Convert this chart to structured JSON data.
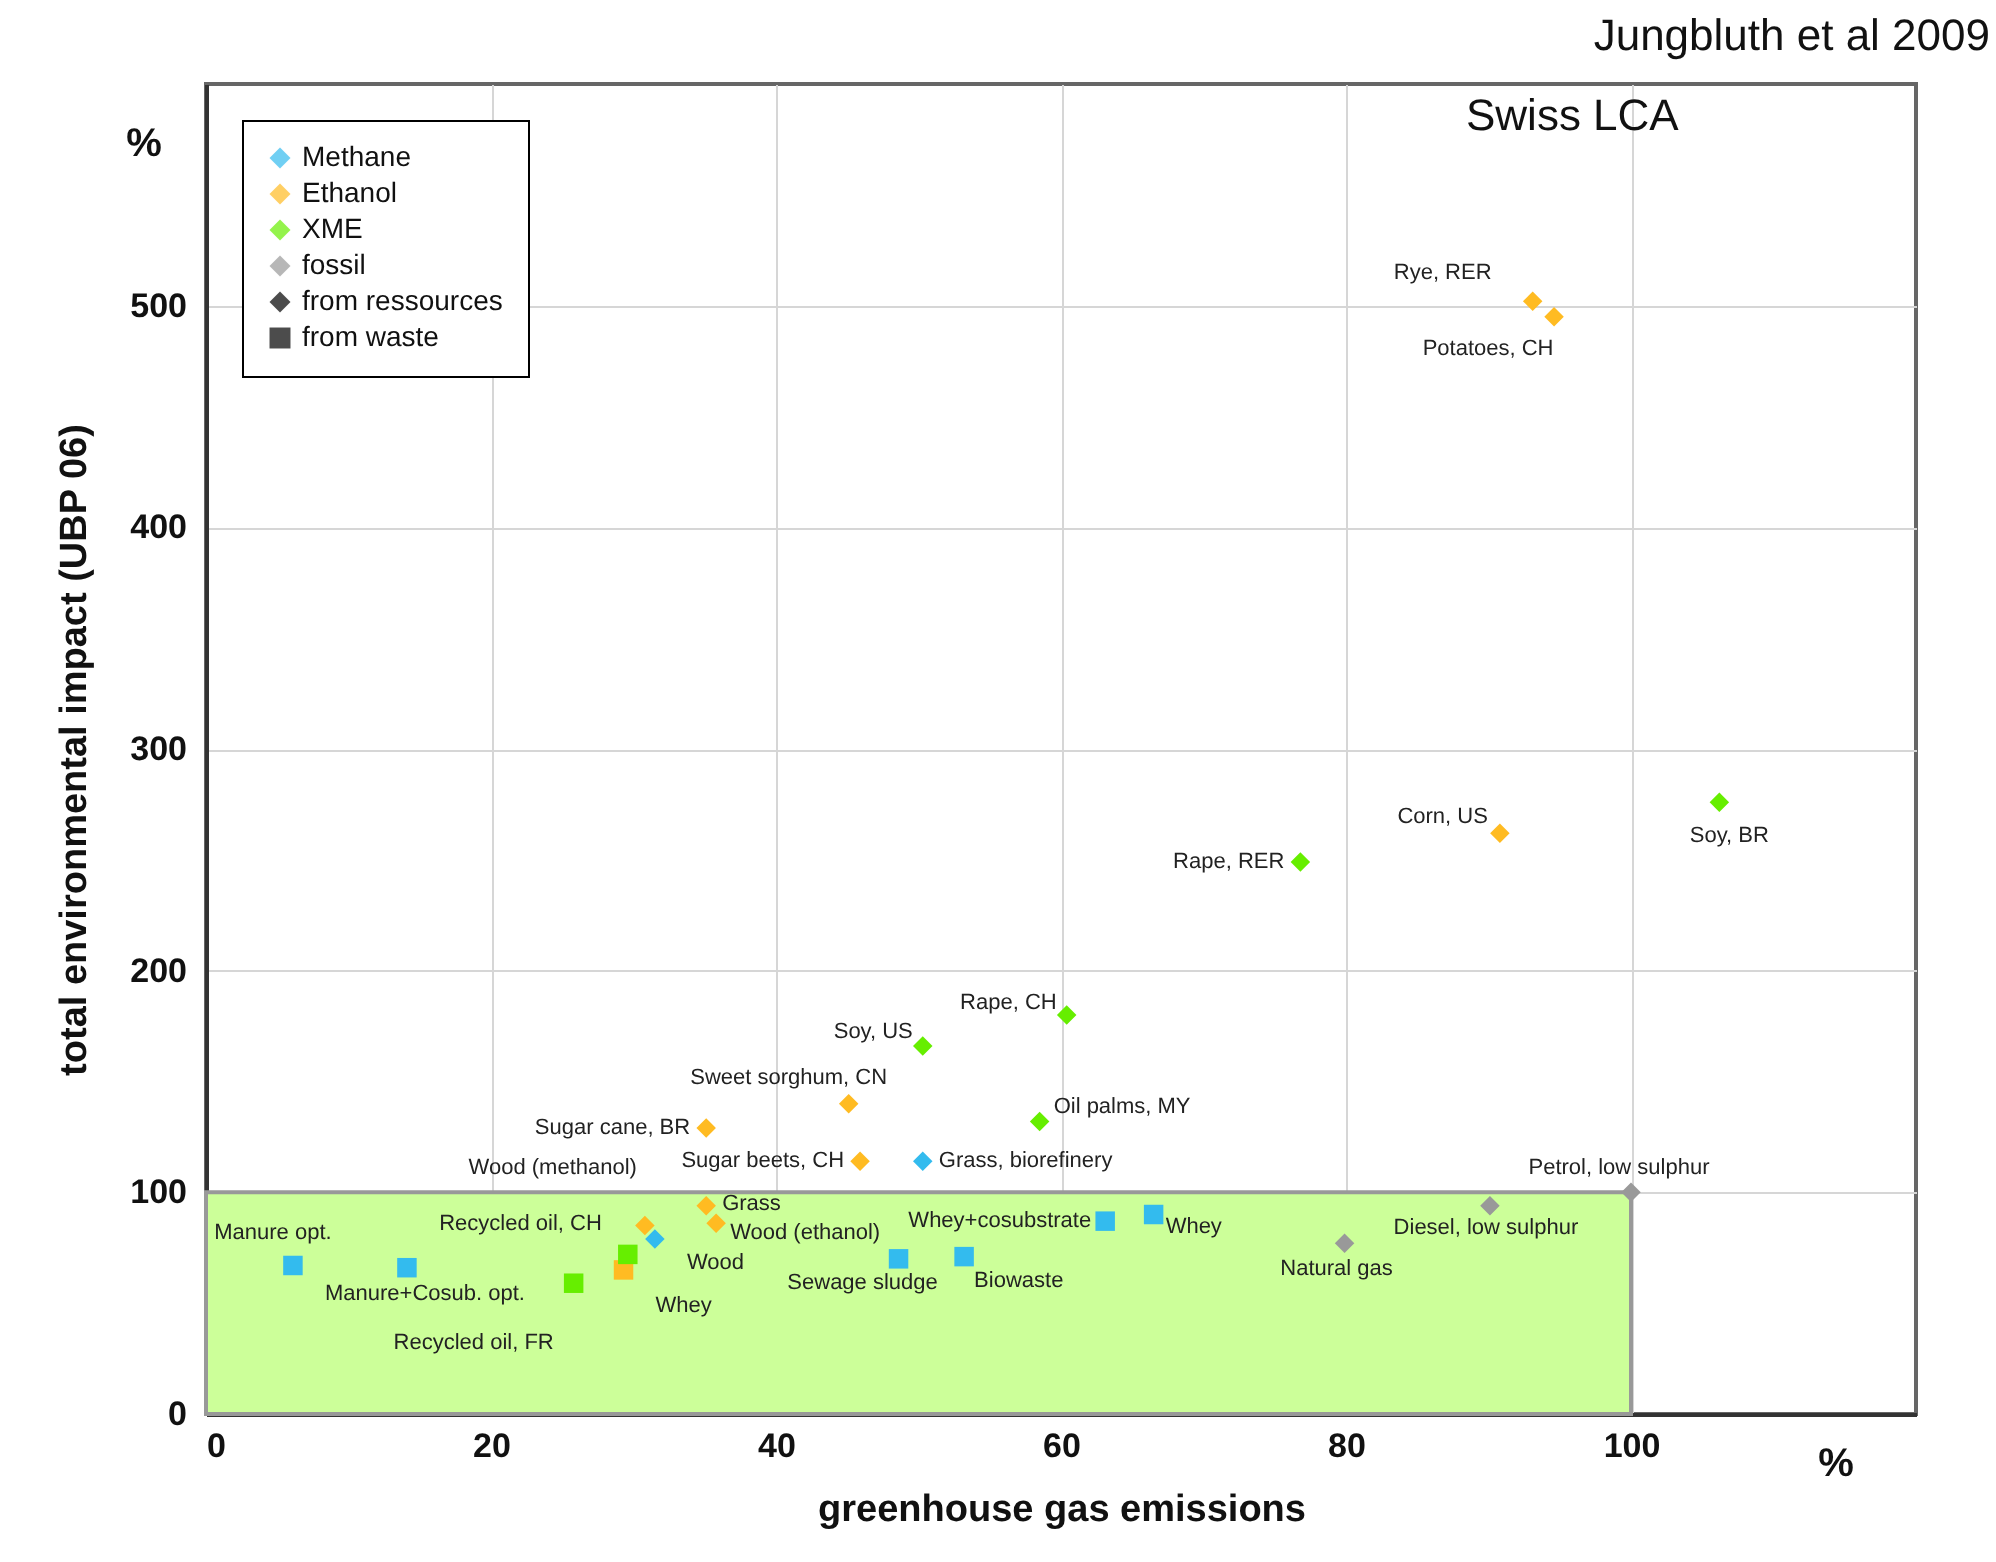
{
  "chart_data": {
    "type": "scatter",
    "xlabel": "greenhouse gas emissions",
    "ylabel": "total environmental impact (UBP 06)",
    "xlim": [
      0,
      120
    ],
    "ylim": [
      0,
      600
    ],
    "xticks": [
      0,
      20,
      40,
      60,
      80,
      100
    ],
    "yticks": [
      0,
      100,
      200,
      300,
      400,
      500
    ],
    "grid": true,
    "legend": "top left",
    "series": [
      {
        "type": "area",
        "color": "#ccff99",
        "x": [
          0,
          100
        ],
        "values": [
          100,
          100
        ]
      },
      {
        "name": "Methane",
        "color": "#33bbee",
        "marker": "diamond",
        "x": [
          31.5,
          50.3
        ],
        "values": [
          79,
          114
        ]
      },
      {
        "color": "#33bbee",
        "marker": "square",
        "x": [
          6.1,
          14.1,
          63.1,
          66.5,
          48.6,
          53.2
        ],
        "values": [
          67,
          66,
          87,
          90,
          70,
          71
        ]
      },
      {
        "name": "Ethanol",
        "color": "#ffbb22",
        "marker": "diamond",
        "x": [
          93.1,
          94.6,
          90.8,
          35.1,
          45.1,
          45.9,
          35.1,
          35.8,
          30.8
        ],
        "values": [
          502,
          495,
          262,
          129,
          140,
          114,
          94,
          86,
          85
        ]
      },
      {
        "color": "#ffbb22",
        "marker": "square",
        "x": [
          29.3
        ],
        "values": [
          65
        ]
      },
      {
        "name": "XME",
        "color": "#66ee00",
        "marker": "diamond",
        "x": [
          106.2,
          76.8,
          60.4,
          50.3,
          58.5
        ],
        "values": [
          276,
          249,
          180,
          166,
          132
        ]
      },
      {
        "color": "#66ee00",
        "marker": "square",
        "x": [
          29.6,
          25.8
        ],
        "values": [
          72,
          59
        ]
      },
      {
        "name": "fossil",
        "color": "#999999",
        "marker": "diamond",
        "x": [
          100,
          90.1,
          79.9
        ],
        "values": [
          100,
          94,
          77
        ]
      },
      {
        "name": "from ressources",
        "color": "#000000",
        "marker": "diamond"
      },
      {
        "name": "from waste",
        "color": "#000000",
        "marker": "square"
      }
    ],
    "annotations": [
      {
        "text": "Manure opt.",
        "x": 6.1,
        "y": 67
      },
      {
        "text": "Manure+Cosub. opt.",
        "x": 14.1,
        "y": 66
      },
      {
        "text": "Wood",
        "x": 31.5,
        "y": 79
      },
      {
        "text": "Grass, biorefinery",
        "x": 50.3,
        "y": 114
      },
      {
        "text": "Whey+cosubstrate",
        "x": 63.1,
        "y": 87
      },
      {
        "text": "Whey",
        "x": 66.5,
        "y": 90
      },
      {
        "text": "Sewage sludge",
        "x": 48.6,
        "y": 70
      },
      {
        "text": "Biowaste",
        "x": 53.2,
        "y": 71
      },
      {
        "text": "Rye, RER",
        "x": 93.1,
        "y": 502
      },
      {
        "text": "Potatoes, CH",
        "x": 94.6,
        "y": 495
      },
      {
        "text": "Corn, US",
        "x": 90.8,
        "y": 262
      },
      {
        "text": "Sugar cane, BR",
        "x": 35.1,
        "y": 129
      },
      {
        "text": "Sweet sorghum, CN",
        "x": 45.1,
        "y": 140
      },
      {
        "text": "Sugar beets, CH",
        "x": 45.9,
        "y": 114
      },
      {
        "text": "Grass",
        "x": 35.1,
        "y": 94
      },
      {
        "text": "Wood (ethanol)",
        "x": 35.8,
        "y": 86
      },
      {
        "text": "Wood (methanol)",
        "x": 30.8,
        "y": 85
      },
      {
        "text": "Whey",
        "x": 29.3,
        "y": 65
      },
      {
        "text": "Soy, BR",
        "x": 106.2,
        "y": 276
      },
      {
        "text": "Rape, RER",
        "x": 76.8,
        "y": 249
      },
      {
        "text": "Rape, CH",
        "x": 60.4,
        "y": 180
      },
      {
        "text": "Soy, US",
        "x": 50.3,
        "y": 166
      },
      {
        "text": "Oil palms, MY",
        "x": 58.5,
        "y": 132
      },
      {
        "text": "Recycled oil, CH",
        "x": 29.6,
        "y": 72
      },
      {
        "text": "Recycled oil, FR",
        "x": 25.8,
        "y": 59
      },
      {
        "text": "Petrol, low sulphur",
        "x": 100,
        "y": 100
      },
      {
        "text": "Diesel, low sulphur",
        "x": 90.1,
        "y": 94
      },
      {
        "text": "Natural gas",
        "x": 79.9,
        "y": 77
      },
      "Jungbluth et al 2009",
      "Swiss LCA",
      "%",
      "%"
    ]
  }
}
